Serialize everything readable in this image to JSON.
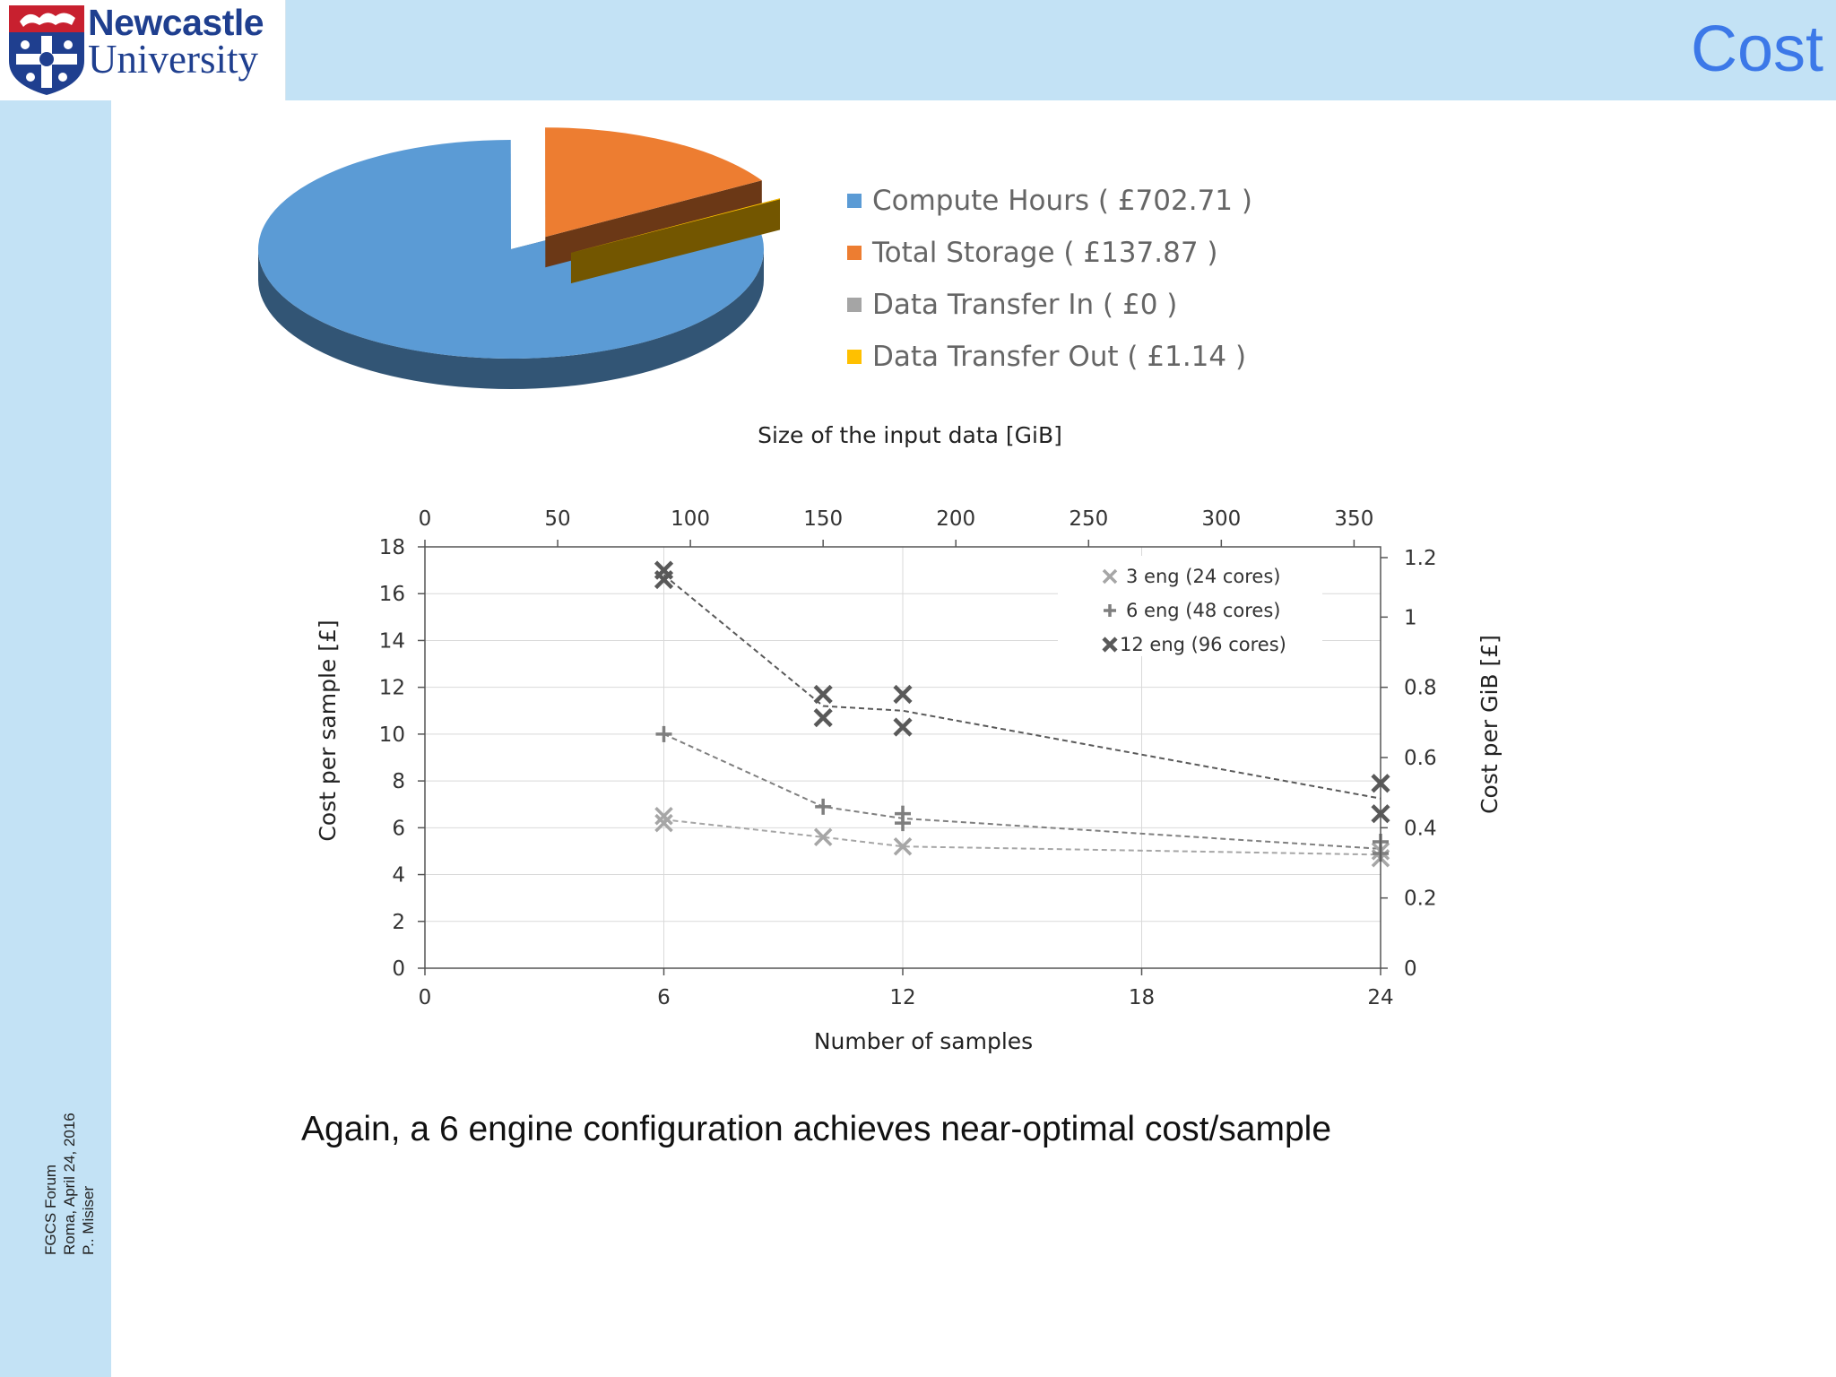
{
  "header": {
    "title": "Cost"
  },
  "logo": {
    "line1": "Newcastle",
    "line2": "University"
  },
  "footer": {
    "line1": "FGCS Forum",
    "line2": "Roma, April 24, 2016",
    "line3": "P.. Misiser"
  },
  "caption": "Again, a 6 engine configuration achieves near-optimal cost/sample",
  "colors": {
    "header_bg": "#c3e2f5",
    "title": "#3c78e8",
    "compute": "#5b9bd5",
    "storage": "#ed7d31",
    "transfer_in": "#a5a5a5",
    "transfer_out": "#ffc000"
  },
  "chart_data": [
    {
      "type": "pie",
      "legend_position": "right",
      "slices": [
        {
          "label": "Compute Hours ( £702.71 )",
          "value": 702.71,
          "color": "#5b9bd5"
        },
        {
          "label": "Total Storage ( £137.87 )",
          "value": 137.87,
          "color": "#ed7d31"
        },
        {
          "label": "Data Transfer In ( £0 )",
          "value": 0,
          "color": "#a5a5a5"
        },
        {
          "label": "Data Transfer Out ( £1.14 )",
          "value": 1.14,
          "color": "#ffc000"
        }
      ]
    },
    {
      "type": "scatter",
      "xlabel": "Number of samples",
      "ylabel": "Cost per sample [£]",
      "x2label": "Size of the input data [GiB]",
      "y2label": "Cost per GiB [£]",
      "xlim": [
        0,
        24
      ],
      "ylim": [
        0,
        18
      ],
      "x2lim": [
        0,
        360
      ],
      "y2lim": [
        0,
        1.2
      ],
      "xticks": [
        0,
        6,
        12,
        18,
        24
      ],
      "yticks": [
        0,
        2,
        4,
        6,
        8,
        10,
        12,
        14,
        16,
        18
      ],
      "x2ticks": [
        0,
        50,
        100,
        150,
        200,
        250,
        300,
        350
      ],
      "y2ticks": [
        0,
        0.2,
        0.4,
        0.6,
        0.8,
        1,
        1.2
      ],
      "grid": true,
      "legend_position": "top-right",
      "series": [
        {
          "name": "3 eng (24 cores)",
          "marker": "x",
          "color": "#a6a6a6",
          "points": [
            [
              6,
              6.2
            ],
            [
              6,
              6.5
            ],
            [
              10,
              5.6
            ],
            [
              12,
              5.2
            ],
            [
              24,
              4.7
            ],
            [
              24,
              5.0
            ]
          ],
          "trend": [
            [
              6,
              6.35
            ],
            [
              10,
              5.6
            ],
            [
              12,
              5.2
            ],
            [
              24,
              4.85
            ]
          ]
        },
        {
          "name": "6 eng (48 cores)",
          "marker": "+",
          "color": "#7f7f7f",
          "points": [
            [
              6,
              10.0
            ],
            [
              10,
              6.9
            ],
            [
              12,
              6.6
            ],
            [
              12,
              6.2
            ],
            [
              24,
              5.4
            ],
            [
              24,
              4.9
            ]
          ],
          "trend": [
            [
              6,
              10.0
            ],
            [
              10,
              6.9
            ],
            [
              12,
              6.4
            ],
            [
              24,
              5.1
            ]
          ]
        },
        {
          "name": "12 eng (96 cores)",
          "marker": "x-bold",
          "color": "#595959",
          "points": [
            [
              6,
              17.0
            ],
            [
              6,
              16.6
            ],
            [
              10,
              11.7
            ],
            [
              10,
              10.7
            ],
            [
              12,
              11.7
            ],
            [
              12,
              10.3
            ],
            [
              24,
              7.9
            ],
            [
              24,
              6.6
            ]
          ],
          "trend": [
            [
              6,
              16.8
            ],
            [
              10,
              11.2
            ],
            [
              12,
              11.0
            ],
            [
              24,
              7.25
            ]
          ]
        }
      ]
    }
  ]
}
